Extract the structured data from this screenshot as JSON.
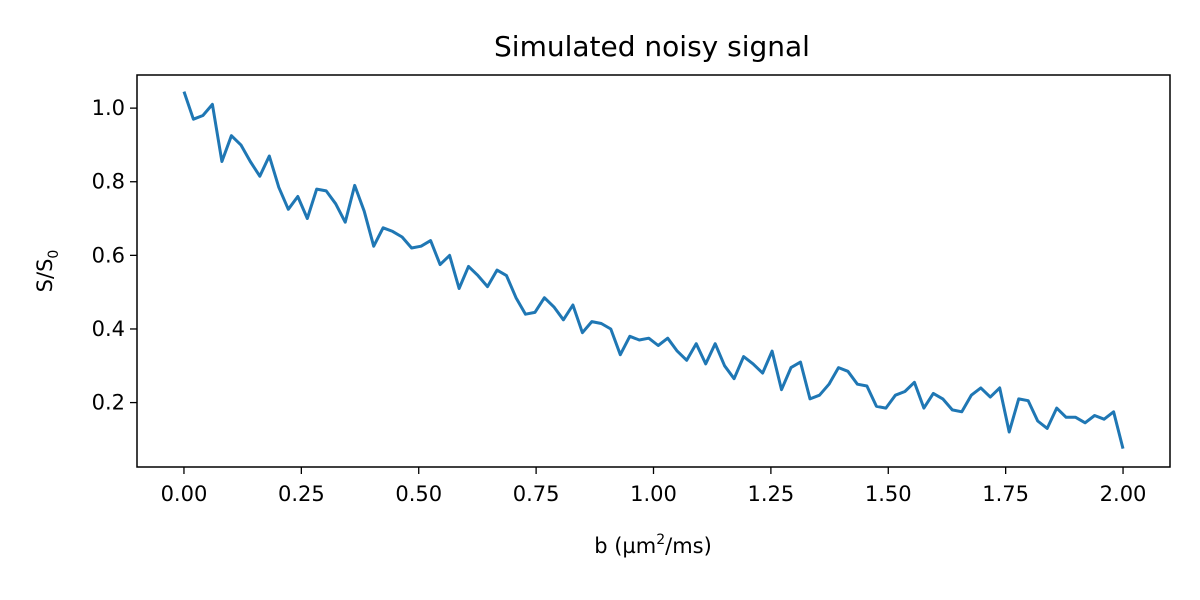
{
  "chart_data": {
    "type": "line",
    "title": "Simulated noisy signal",
    "xlabel": {
      "base": "b (µm",
      "sup": "2",
      "tail": "/ms)"
    },
    "ylabel": {
      "base": "S/S",
      "sub": "0"
    },
    "xlim": [
      -0.1,
      2.1
    ],
    "ylim": [
      0.025,
      1.09
    ],
    "xticks": [
      0.0,
      0.25,
      0.5,
      0.75,
      1.0,
      1.25,
      1.5,
      1.75,
      2.0
    ],
    "xtick_labels": [
      "0.00",
      "0.25",
      "0.50",
      "0.75",
      "1.00",
      "1.25",
      "1.50",
      "1.75",
      "2.00"
    ],
    "yticks": [
      0.2,
      0.4,
      0.6,
      0.8,
      1.0
    ],
    "ytick_labels": [
      "0.2",
      "0.4",
      "0.6",
      "0.8",
      "1.0"
    ],
    "grid": false,
    "series": [
      {
        "color": "#1f77b4",
        "x": [
          0.0,
          0.0202,
          0.0404,
          0.0606,
          0.0808,
          0.101,
          0.1212,
          0.1414,
          0.1616,
          0.1818,
          0.202,
          0.2222,
          0.2424,
          0.2626,
          0.2828,
          0.303,
          0.3232,
          0.3434,
          0.3636,
          0.3838,
          0.404,
          0.4242,
          0.4444,
          0.4646,
          0.4848,
          0.5051,
          0.5253,
          0.5455,
          0.5657,
          0.5859,
          0.6061,
          0.6263,
          0.6465,
          0.6667,
          0.6869,
          0.7071,
          0.7273,
          0.7475,
          0.7677,
          0.7879,
          0.8081,
          0.8283,
          0.8485,
          0.8687,
          0.8889,
          0.9091,
          0.9293,
          0.9495,
          0.9697,
          0.9899,
          1.0101,
          1.0303,
          1.0505,
          1.0707,
          1.0909,
          1.1111,
          1.1313,
          1.1515,
          1.1717,
          1.1919,
          1.2121,
          1.2323,
          1.2525,
          1.2727,
          1.2929,
          1.3131,
          1.3333,
          1.3535,
          1.3737,
          1.3939,
          1.4141,
          1.4343,
          1.4545,
          1.4747,
          1.4949,
          1.5152,
          1.5354,
          1.5556,
          1.5758,
          1.596,
          1.6162,
          1.6364,
          1.6566,
          1.6768,
          1.697,
          1.7172,
          1.7374,
          1.7576,
          1.7778,
          1.798,
          1.8182,
          1.8384,
          1.8586,
          1.8788,
          1.899,
          1.9192,
          1.9394,
          1.9596,
          1.9798,
          2.0
        ],
        "y": [
          1.045,
          0.97,
          0.98,
          1.01,
          0.855,
          0.925,
          0.9,
          0.855,
          0.815,
          0.87,
          0.785,
          0.725,
          0.76,
          0.7,
          0.78,
          0.775,
          0.74,
          0.69,
          0.79,
          0.72,
          0.625,
          0.675,
          0.665,
          0.65,
          0.62,
          0.625,
          0.64,
          0.575,
          0.6,
          0.51,
          0.57,
          0.545,
          0.515,
          0.56,
          0.545,
          0.485,
          0.44,
          0.445,
          0.485,
          0.46,
          0.425,
          0.465,
          0.39,
          0.42,
          0.415,
          0.4,
          0.33,
          0.38,
          0.37,
          0.375,
          0.355,
          0.375,
          0.34,
          0.315,
          0.36,
          0.305,
          0.36,
          0.3,
          0.265,
          0.325,
          0.305,
          0.28,
          0.34,
          0.235,
          0.295,
          0.31,
          0.21,
          0.22,
          0.25,
          0.295,
          0.285,
          0.25,
          0.245,
          0.19,
          0.185,
          0.22,
          0.23,
          0.255,
          0.185,
          0.225,
          0.21,
          0.18,
          0.175,
          0.22,
          0.24,
          0.215,
          0.24,
          0.12,
          0.21,
          0.205,
          0.15,
          0.13,
          0.185,
          0.16,
          0.16,
          0.145,
          0.165,
          0.155,
          0.175,
          0.075
        ]
      }
    ]
  }
}
